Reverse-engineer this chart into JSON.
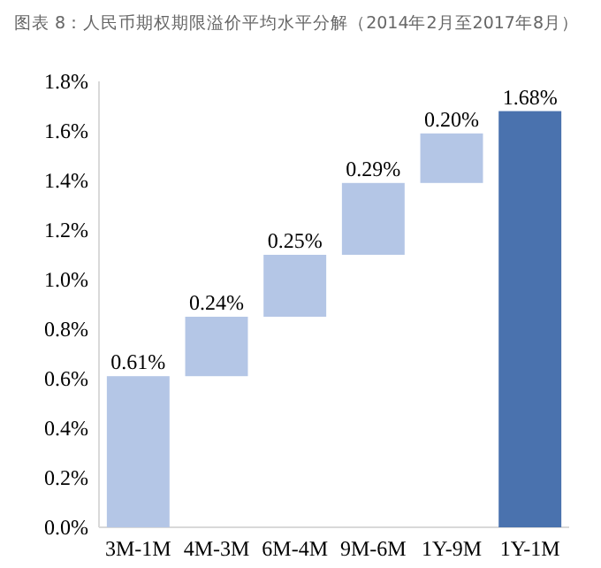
{
  "chart_data": {
    "type": "bar",
    "title": "图表 8：人民币期权期限溢价平均水平分解（2014年2月至2017年8月）",
    "categories": [
      "3M-1M",
      "4M-3M",
      "6M-4M",
      "9M-6M",
      "1Y-9M",
      "1Y-1M"
    ],
    "values": [
      0.61,
      0.24,
      0.25,
      0.29,
      0.2,
      1.68
    ],
    "base": [
      0,
      0.61,
      0.85,
      1.1,
      1.39,
      0
    ],
    "colors": [
      "#b4c6e6",
      "#b4c6e6",
      "#b4c6e6",
      "#b4c6e6",
      "#b4c6e6",
      "#4a72ae"
    ],
    "value_labels": [
      "0.61%",
      "0.24%",
      "0.25%",
      "0.29%",
      "0.20%",
      "1.68%"
    ],
    "ylim": [
      0,
      1.8
    ],
    "yticks": [
      {
        "value": 0,
        "label": "0.0%"
      },
      {
        "value": 0.2,
        "label": "0.2%"
      },
      {
        "value": 0.4,
        "label": "0.4%"
      },
      {
        "value": 0.6,
        "label": "0.6%"
      },
      {
        "value": 0.8,
        "label": "0.8%"
      },
      {
        "value": 1.0,
        "label": "1.0%"
      },
      {
        "value": 1.2,
        "label": "1.2%"
      },
      {
        "value": 1.4,
        "label": "1.4%"
      },
      {
        "value": 1.6,
        "label": "1.6%"
      },
      {
        "value": 1.8,
        "label": "1.8%"
      }
    ]
  }
}
